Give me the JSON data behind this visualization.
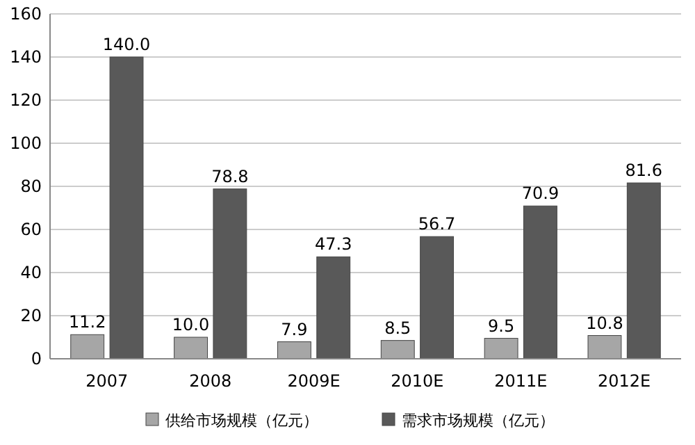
{
  "chart_data": {
    "type": "bar",
    "categories": [
      "2007",
      "2008",
      "2009E",
      "2010E",
      "2011E",
      "2012E"
    ],
    "series": [
      {
        "name": "供给市场规模（亿元）",
        "color": "#a6a6a6",
        "values": [
          11.2,
          10.0,
          7.9,
          8.5,
          9.5,
          10.8
        ],
        "value_labels": [
          "11.2",
          "10.0",
          "7.9",
          "8.5",
          "9.5",
          "10.8"
        ]
      },
      {
        "name": "需求市场规模（亿元）",
        "color": "#595959",
        "values": [
          140.0,
          78.8,
          47.3,
          56.7,
          70.9,
          81.6
        ],
        "value_labels": [
          "140.0",
          "78.8",
          "47.3",
          "56.7",
          "70.9",
          "81.6"
        ]
      }
    ],
    "ylim": [
      0,
      160
    ],
    "yticks": [
      0,
      20,
      40,
      60,
      80,
      100,
      120,
      140,
      160
    ],
    "grid": "y",
    "legend": "bottom"
  }
}
